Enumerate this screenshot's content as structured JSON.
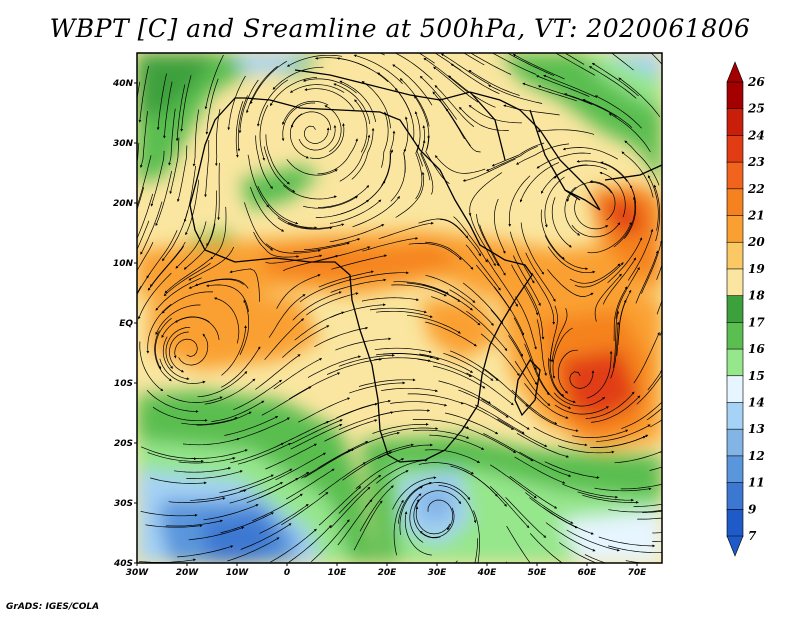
{
  "title": "WBPT [C] and Sreamline at 500hPa, VT: 2020061806",
  "credit": "GrADS: IGES/COLA",
  "map": {
    "lat_labels": [
      "40N",
      "30N",
      "20N",
      "10N",
      "EQ",
      "10S",
      "20S",
      "30S",
      "40S"
    ],
    "lon_labels": [
      "30W",
      "20W",
      "10W",
      "0",
      "10E",
      "20E",
      "30E",
      "40E",
      "50E",
      "60E",
      "70E"
    ],
    "lat_range": [
      -40,
      45
    ],
    "lon_range": [
      -30,
      75
    ],
    "variable": "Wet-bulb potential temperature (WBPT)",
    "unit": "C"
  },
  "colorbar": {
    "labels": [
      "26",
      "25",
      "24",
      "23",
      "22",
      "21",
      "20",
      "19",
      "18",
      "17",
      "16",
      "15",
      "14",
      "13",
      "12",
      "11",
      "9",
      "7"
    ],
    "colors": [
      "#a50000",
      "#c81e0a",
      "#e13c14",
      "#f0641e",
      "#f5821e",
      "#faa032",
      "#fac864",
      "#fae6a0",
      "#3ca03c",
      "#5abe50",
      "#96e68c",
      "#e6f5ff",
      "#a5d2f5",
      "#82b4e6",
      "#5a96dc",
      "#3c78d2",
      "#1e5ac8"
    ]
  }
}
